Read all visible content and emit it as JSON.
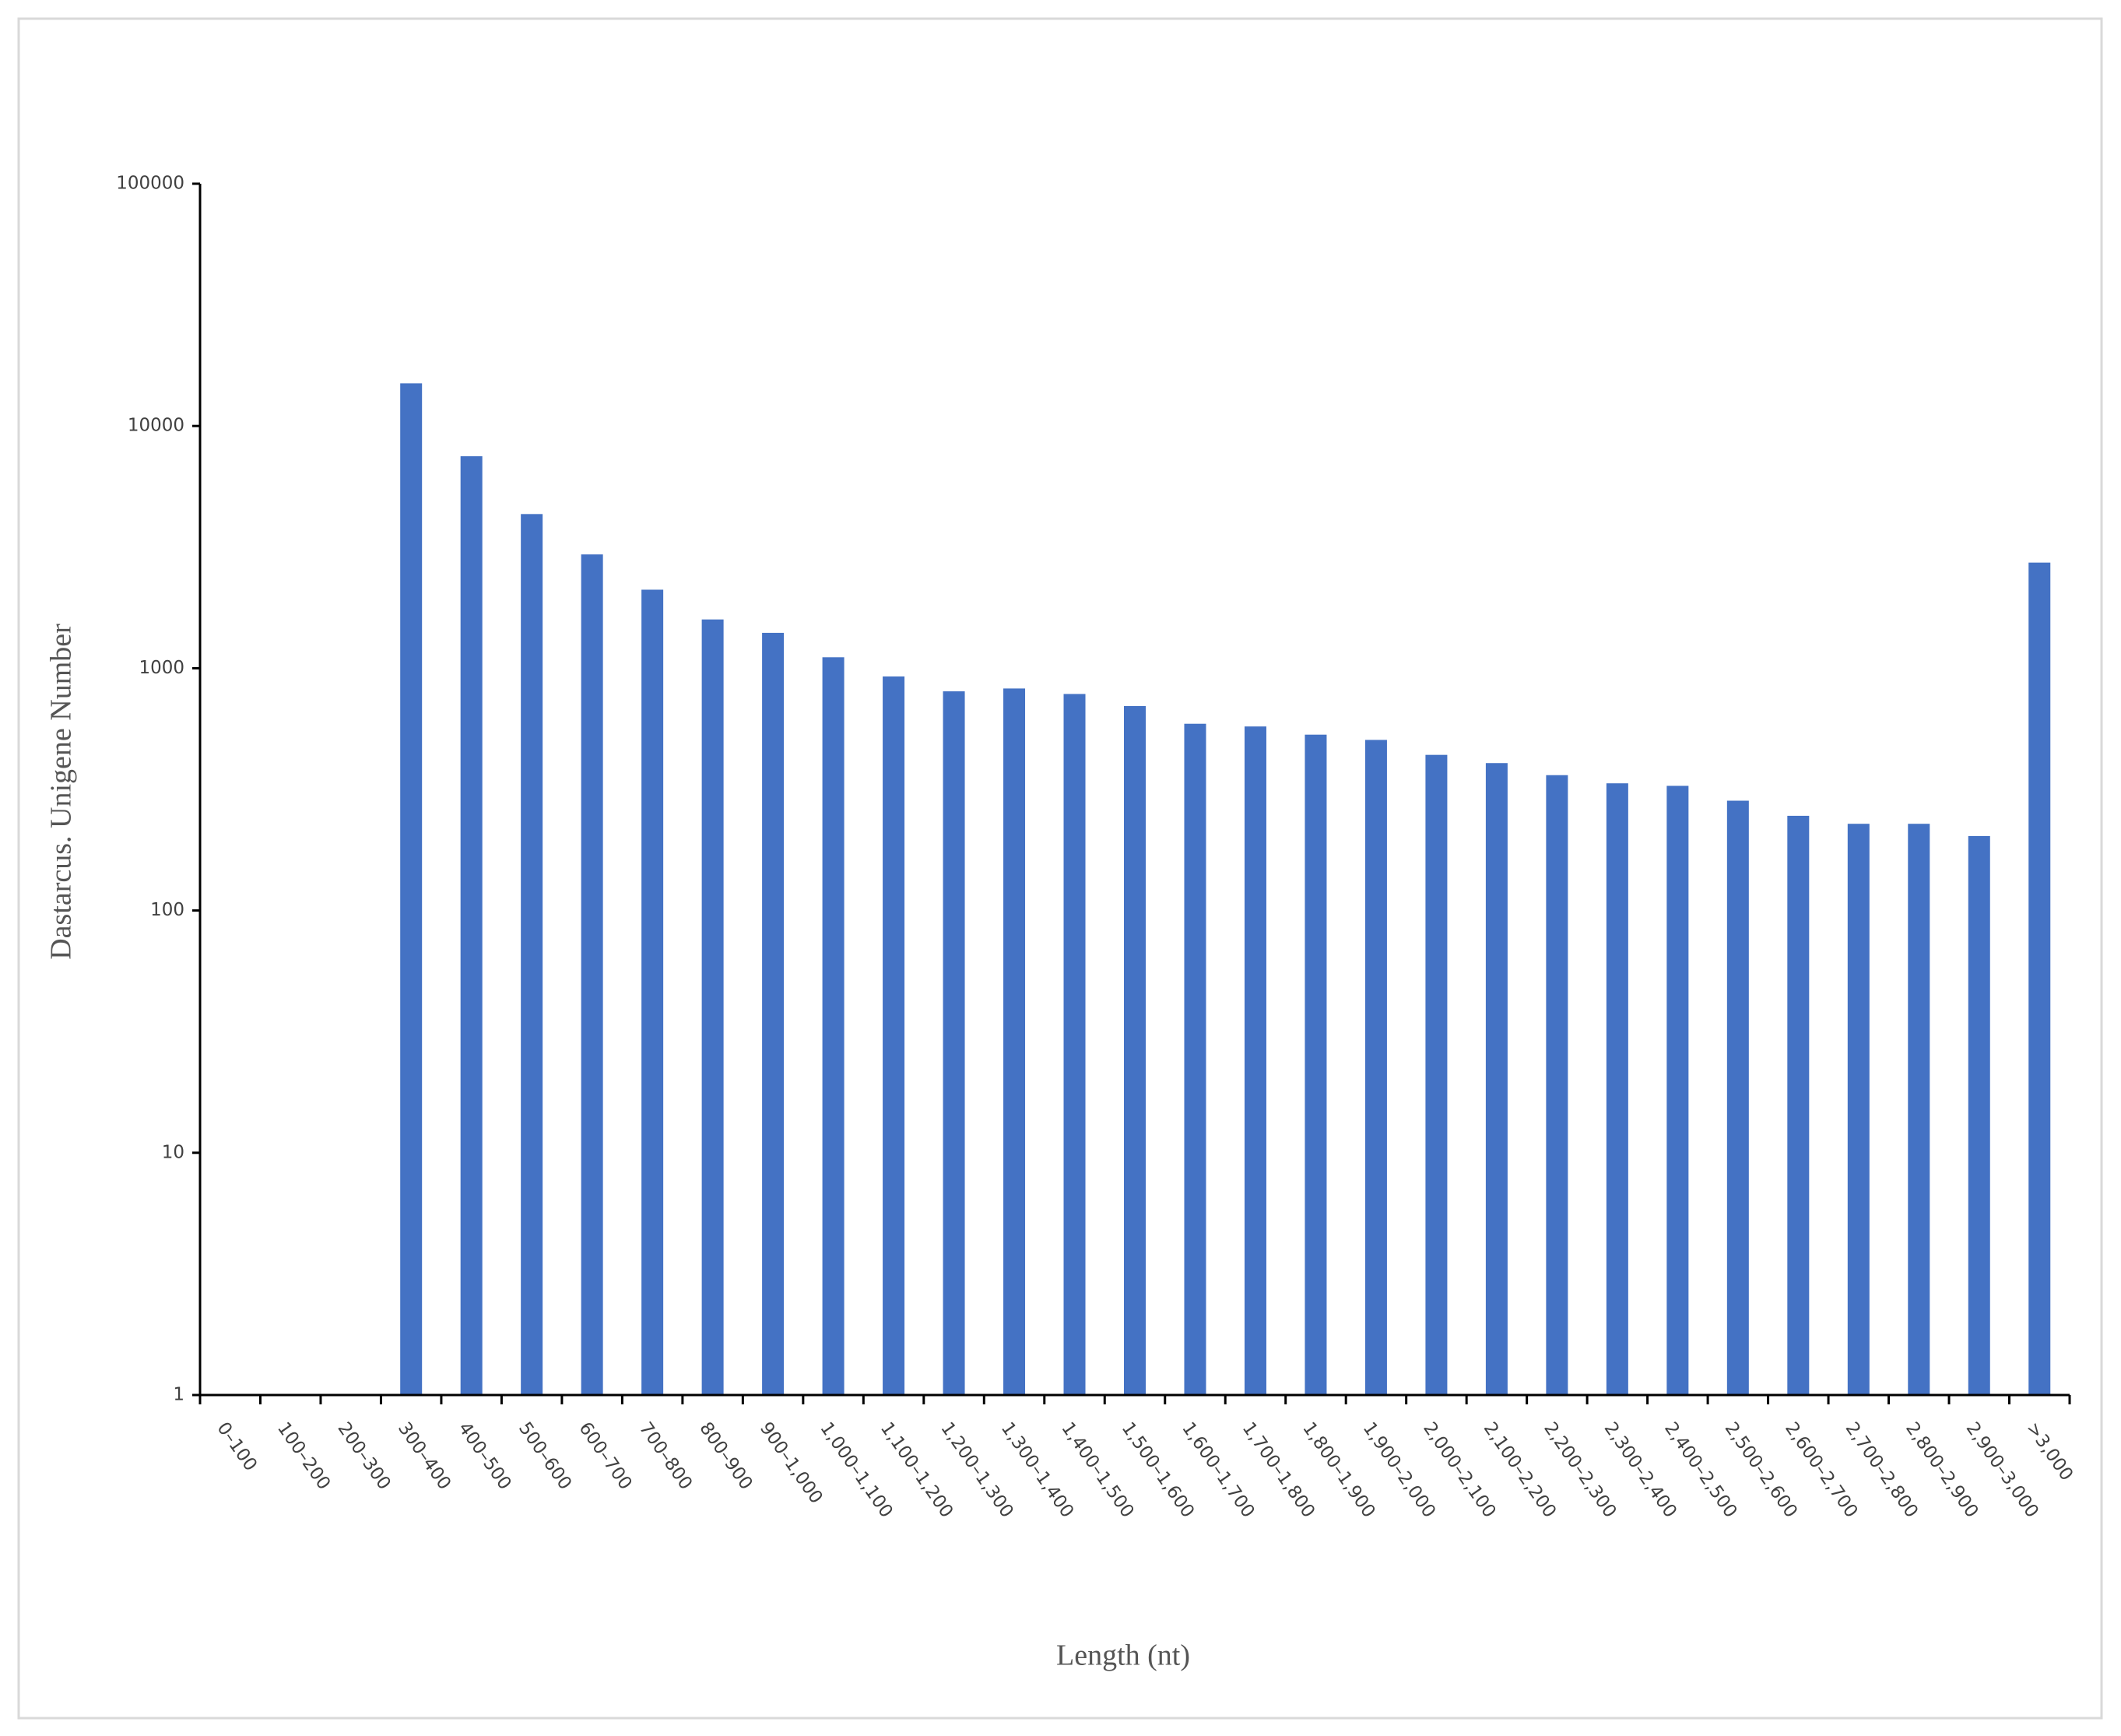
{
  "chart_data": {
    "type": "bar",
    "x_label": "Length (nt)",
    "y_label": "Dastarcus. Unigene Number",
    "categories": [
      "0–100",
      "100–200",
      "200–300",
      "300–400",
      "400–500",
      "500–600",
      "600–700",
      "700–800",
      "800–900",
      "900–1,000",
      "1,000–1,100",
      "1,100–1,200",
      "1,200–1,300",
      "1,300–1,400",
      "1,400–1,500",
      "1,500–1,600",
      "1,600–1,700",
      "1,700–1,800",
      "1,800–1,900",
      "1,900–2,000",
      "2,000–2,100",
      "2,100–2,200",
      "2,200–2,300",
      "2,300–2,400",
      "2,400–2,500",
      "2,500–2,600",
      "2,600–2,700",
      "2,700–2,800",
      "2,800–2,900",
      "2,900–3,000",
      ">3,000"
    ],
    "values": [
      null,
      null,
      null,
      15000,
      7500,
      4330,
      2950,
      2110,
      1590,
      1400,
      1110,
      925,
      803,
      825,
      783,
      698,
      590,
      575,
      532,
      506,
      439,
      406,
      362,
      335,
      327,
      284,
      246,
      228,
      228,
      203,
      2730
    ],
    "color": "#4472c4",
    "ylim": [
      1,
      100000
    ],
    "yticks": [
      1,
      10,
      100,
      1000,
      10000,
      100000
    ],
    "log_scale": true,
    "grid": false
  }
}
